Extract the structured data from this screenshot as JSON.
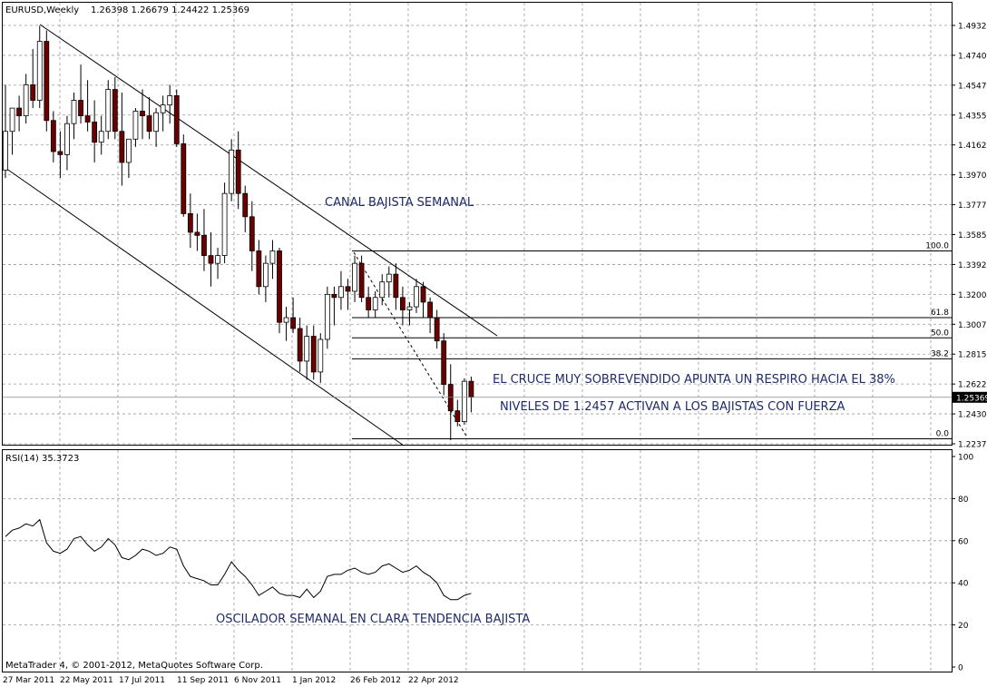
{
  "header": {
    "symbol": "EURUSD,Weekly",
    "ohlc": "1.26398 1.26679 1.24422 1.25369"
  },
  "footer": {
    "copyright": "MetaTrader 4, © 2001-2012, MetaQuotes Software Corp."
  },
  "annotations": {
    "channel": "CANAL BAJISTA SEMANAL",
    "cross": "EL CRUCE MUY SOBREVENDIDO APUNTA UN RESPIRO HACIA EL 38%",
    "levels": "NIVELES DE 1.2457 ACTIVAN A LOS BAJISTAS CON FUERZA",
    "oscillator": "OSCILADOR SEMANAL EN CLARA TENDENCIA BAJISTA"
  },
  "rsi": {
    "label": "RSI(14) 35.3723"
  },
  "colors": {
    "bull": "#ffffff",
    "bear": "#6b0000",
    "grid": "#999999",
    "text_accent": "#1f2a6b",
    "price_badge": "#000000"
  },
  "chart_data": [
    {
      "type": "candlestick",
      "title": "EURUSD,Weekly",
      "y_ticks": [
        "1.49325",
        "1.47400",
        "1.45475",
        "1.43550",
        "1.41625",
        "1.39700",
        "1.37775",
        "1.35850",
        "1.33925",
        "1.32000",
        "1.30075",
        "1.28150",
        "1.26225",
        "1.24300",
        "1.22375"
      ],
      "ylim": [
        1.2175,
        1.502
      ],
      "current_price": "1.25369",
      "x_labels": [
        "27 Mar 2011",
        "22 May 2011",
        "17 Jul 2011",
        "11 Sep 2011",
        "6 Nov 2011",
        "1 Jan 2012",
        "26 Feb 2012",
        "22 Apr 2012"
      ],
      "bars": [
        [
          1.4,
          1.455,
          1.395,
          1.425
        ],
        [
          1.425,
          1.44,
          1.41,
          1.44
        ],
        [
          1.44,
          1.448,
          1.425,
          1.435
        ],
        [
          1.435,
          1.462,
          1.43,
          1.455
        ],
        [
          1.455,
          1.478,
          1.44,
          1.445
        ],
        [
          1.445,
          1.493,
          1.44,
          1.483
        ],
        [
          1.483,
          1.49,
          1.425,
          1.432
        ],
        [
          1.432,
          1.438,
          1.405,
          1.412
        ],
        [
          1.412,
          1.425,
          1.395,
          1.41
        ],
        [
          1.41,
          1.435,
          1.4,
          1.43
        ],
        [
          1.43,
          1.45,
          1.42,
          1.445
        ],
        [
          1.445,
          1.468,
          1.43,
          1.435
        ],
        [
          1.435,
          1.458,
          1.425,
          1.431
        ],
        [
          1.431,
          1.445,
          1.405,
          1.418
        ],
        [
          1.418,
          1.435,
          1.41,
          1.425
        ],
        [
          1.425,
          1.458,
          1.42,
          1.452
        ],
        [
          1.452,
          1.46,
          1.42,
          1.425
        ],
        [
          1.425,
          1.45,
          1.39,
          1.405
        ],
        [
          1.405,
          1.42,
          1.395,
          1.42
        ],
        [
          1.42,
          1.44,
          1.415,
          1.438
        ],
        [
          1.438,
          1.452,
          1.42,
          1.435
        ],
        [
          1.435,
          1.447,
          1.42,
          1.425
        ],
        [
          1.425,
          1.44,
          1.415,
          1.437
        ],
        [
          1.437,
          1.448,
          1.425,
          1.442
        ],
        [
          1.442,
          1.455,
          1.43,
          1.448
        ],
        [
          1.448,
          1.452,
          1.415,
          1.417
        ],
        [
          1.417,
          1.423,
          1.37,
          1.372
        ],
        [
          1.372,
          1.385,
          1.35,
          1.36
        ],
        [
          1.36,
          1.372,
          1.348,
          1.358
        ],
        [
          1.358,
          1.375,
          1.335,
          1.345
        ],
        [
          1.345,
          1.36,
          1.325,
          1.34
        ],
        [
          1.34,
          1.35,
          1.33,
          1.345
        ],
        [
          1.345,
          1.392,
          1.34,
          1.385
        ],
        [
          1.385,
          1.42,
          1.38,
          1.413
        ],
        [
          1.413,
          1.425,
          1.375,
          1.385
        ],
        [
          1.385,
          1.39,
          1.36,
          1.37
        ],
        [
          1.37,
          1.38,
          1.335,
          1.348
        ],
        [
          1.348,
          1.355,
          1.32,
          1.325
        ],
        [
          1.325,
          1.345,
          1.315,
          1.34
        ],
        [
          1.34,
          1.355,
          1.33,
          1.348
        ],
        [
          1.348,
          1.35,
          1.295,
          1.302
        ],
        [
          1.302,
          1.312,
          1.29,
          1.305
        ],
        [
          1.305,
          1.318,
          1.295,
          1.298
        ],
        [
          1.298,
          1.305,
          1.27,
          1.277
        ],
        [
          1.277,
          1.3,
          1.265,
          1.293
        ],
        [
          1.293,
          1.3,
          1.265,
          1.27
        ],
        [
          1.27,
          1.295,
          1.263,
          1.291
        ],
        [
          1.291,
          1.325,
          1.285,
          1.32
        ],
        [
          1.32,
          1.325,
          1.3,
          1.318
        ],
        [
          1.318,
          1.335,
          1.31,
          1.325
        ],
        [
          1.325,
          1.33,
          1.31,
          1.322
        ],
        [
          1.322,
          1.345,
          1.315,
          1.34
        ],
        [
          1.34,
          1.345,
          1.315,
          1.318
        ],
        [
          1.318,
          1.325,
          1.305,
          1.31
        ],
        [
          1.31,
          1.322,
          1.305,
          1.318
        ],
        [
          1.318,
          1.333,
          1.313,
          1.328
        ],
        [
          1.328,
          1.338,
          1.318,
          1.333
        ],
        [
          1.333,
          1.34,
          1.31,
          1.318
        ],
        [
          1.318,
          1.325,
          1.3,
          1.31
        ],
        [
          1.31,
          1.315,
          1.3,
          1.312
        ],
        [
          1.312,
          1.33,
          1.308,
          1.325
        ],
        [
          1.325,
          1.328,
          1.305,
          1.315
        ],
        [
          1.315,
          1.318,
          1.295,
          1.305
        ],
        [
          1.305,
          1.31,
          1.285,
          1.29
        ],
        [
          1.29,
          1.295,
          1.255,
          1.262
        ],
        [
          1.262,
          1.275,
          1.226,
          1.245
        ],
        [
          1.245,
          1.252,
          1.235,
          1.238
        ],
        [
          1.238,
          1.266,
          1.236,
          1.264
        ],
        [
          1.264,
          1.267,
          1.244,
          1.254
        ]
      ],
      "fibonacci": [
        {
          "label": "100.0",
          "price": 1.348
        },
        {
          "label": "61.8",
          "price": 1.305
        },
        {
          "label": "50.0",
          "price": 1.292
        },
        {
          "label": "38.2",
          "price": 1.2785
        },
        {
          "label": "0.0",
          "price": 1.227
        }
      ]
    },
    {
      "type": "line",
      "title": "RSI(14) 35.3723",
      "y_ticks": [
        "100",
        "80",
        "60",
        "40",
        "20",
        "0"
      ],
      "ylim": [
        0,
        100
      ],
      "values": [
        62,
        65,
        66,
        68,
        67,
        70,
        59,
        55,
        54,
        56,
        61,
        62,
        58,
        55,
        57,
        61,
        58,
        52,
        51,
        53,
        56,
        55,
        53,
        54,
        57,
        56,
        48,
        43,
        42,
        41,
        39,
        39,
        44,
        50,
        46,
        43,
        39,
        34,
        36,
        38,
        35,
        34,
        34,
        33,
        37,
        33,
        36,
        43,
        44,
        44,
        46,
        47,
        45,
        44,
        45,
        48,
        49,
        47,
        45,
        46,
        48,
        45,
        43,
        40,
        34,
        32,
        32,
        34,
        35
      ]
    }
  ]
}
